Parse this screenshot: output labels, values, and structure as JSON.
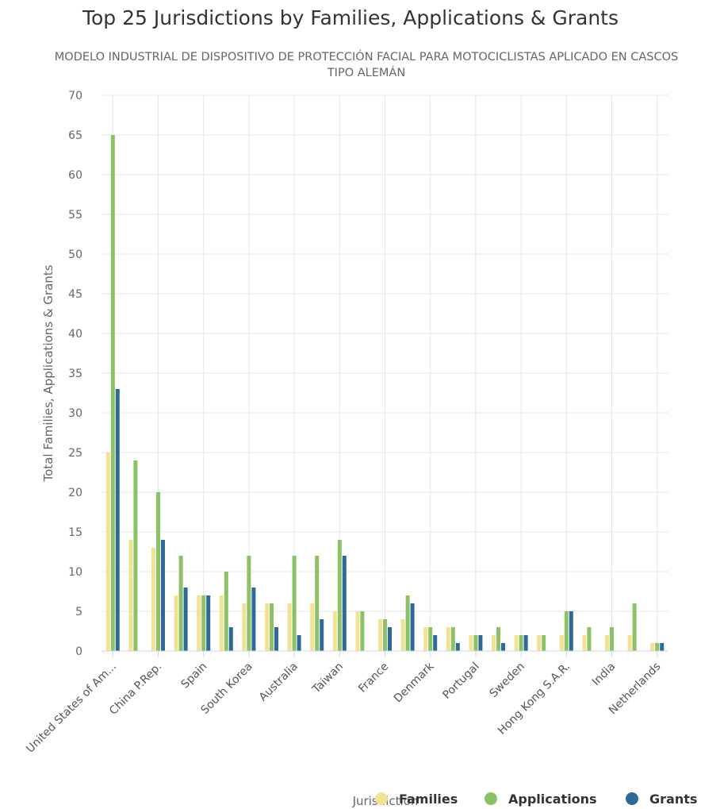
{
  "chart_data": {
    "type": "bar",
    "title": "Top 25 Jurisdictions by Families, Applications & Grants",
    "subtitle": "MODELO INDUSTRIAL DE DISPOSITIVO DE PROTECCIÓN FACIAL PARA MOTOCICLISTAS APLICADO EN CASCOS TIPO ALEMÁN",
    "xlabel": "Jurisdiction",
    "ylabel": "Total Families, Applications & Grants",
    "ylim": [
      0,
      70
    ],
    "yticks": [
      0,
      5,
      10,
      15,
      20,
      25,
      30,
      35,
      40,
      45,
      50,
      55,
      60,
      65,
      70
    ],
    "grid": true,
    "legend_position": "bottom-right",
    "categories": [
      "United States of Am...",
      "",
      "China P.Rep.",
      "",
      "Spain",
      "",
      "South Korea",
      "",
      "Australia",
      "",
      "Taiwan",
      "",
      "France",
      "",
      "Denmark",
      "",
      "Portugal",
      "",
      "Sweden",
      "",
      "Hong Kong S.A.R.",
      "",
      "India",
      "",
      "Netherlands"
    ],
    "series": [
      {
        "name": "Families",
        "color": "#f2e394",
        "values": [
          25,
          14,
          13,
          7,
          7,
          7,
          6,
          6,
          6,
          6,
          5,
          5,
          4,
          4,
          3,
          3,
          2,
          2,
          2,
          2,
          2,
          2,
          2,
          2,
          1
        ]
      },
      {
        "name": "Applications",
        "color": "#8cc265",
        "values": [
          65,
          24,
          20,
          12,
          7,
          10,
          12,
          6,
          12,
          12,
          14,
          5,
          4,
          7,
          3,
          3,
          2,
          3,
          2,
          2,
          5,
          3,
          3,
          6,
          1
        ]
      },
      {
        "name": "Grants",
        "color": "#2f6a96",
        "values": [
          33,
          0,
          14,
          8,
          7,
          3,
          8,
          3,
          2,
          4,
          12,
          0,
          3,
          6,
          2,
          1,
          2,
          1,
          2,
          0,
          5,
          0,
          0,
          0,
          1
        ]
      }
    ]
  }
}
